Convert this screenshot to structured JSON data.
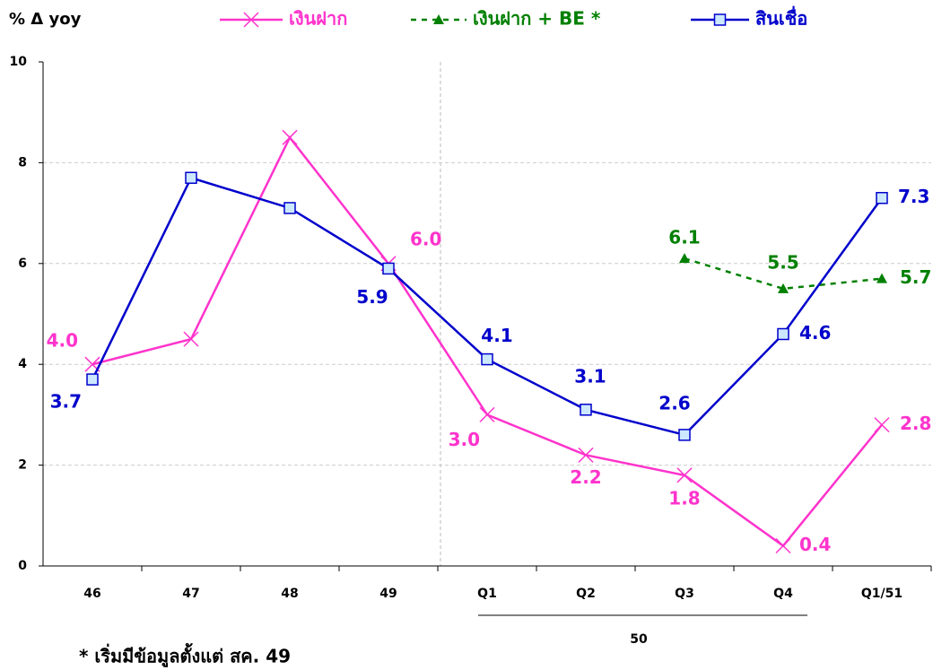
{
  "chart_data": {
    "type": "line",
    "y_label": "% Δ yoy",
    "categories": [
      "46",
      "47",
      "48",
      "49",
      "Q1",
      "Q2",
      "Q3",
      "Q4",
      "Q1/51"
    ],
    "group_label": "50",
    "footnote": "* เริ่มมีข้อมูลตั้งแต่ สค. 49",
    "ylim": [
      0,
      10
    ],
    "yticks": [
      0,
      2,
      4,
      6,
      8,
      10
    ],
    "grid": true,
    "series": [
      {
        "name": "เงินฝาก",
        "color": "#ff33cc",
        "marker": "x",
        "values": [
          4.0,
          4.5,
          8.5,
          6.0,
          3.0,
          2.2,
          1.8,
          0.4,
          2.8
        ],
        "value_labels": [
          "4.0",
          null,
          null,
          "6.0",
          "3.0",
          "2.2",
          "1.8",
          "0.4",
          "2.8"
        ]
      },
      {
        "name": "เงินฝาก + BE *",
        "color": "#008000",
        "marker": "triangle",
        "dashed": true,
        "values": [
          null,
          null,
          null,
          null,
          null,
          null,
          6.1,
          5.5,
          5.7
        ],
        "value_labels": [
          null,
          null,
          null,
          null,
          null,
          null,
          "6.1",
          "5.5",
          "5.7"
        ]
      },
      {
        "name": "สินเชื่อ",
        "color": "#0000cc",
        "marker": "square",
        "values": [
          3.7,
          7.7,
          7.1,
          5.9,
          4.1,
          3.1,
          2.6,
          4.6,
          7.3
        ],
        "value_labels": [
          "3.7",
          null,
          null,
          "5.9",
          "4.1",
          "3.1",
          "2.6",
          "4.6",
          "7.3"
        ]
      }
    ]
  }
}
